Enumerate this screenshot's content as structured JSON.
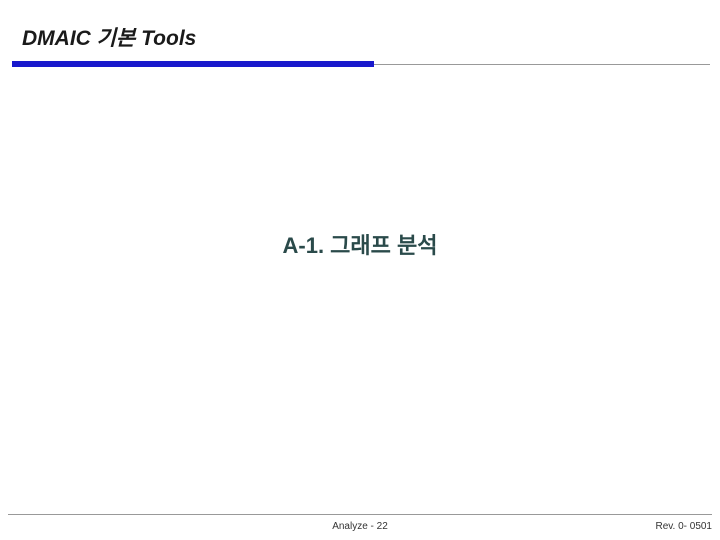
{
  "header": {
    "title": "DMAIC 기본 Tools"
  },
  "main": {
    "heading": "A-1. 그래프 분석"
  },
  "footer": {
    "center": "Analyze - 22",
    "right": "Rev. 0- 0501"
  },
  "styles": {
    "blue_bar_color": "#1818cc",
    "gray_line_color": "#999999",
    "header_color": "#1a1a1a",
    "main_heading_color": "#2a4a4a",
    "background_color": "#ffffff"
  }
}
